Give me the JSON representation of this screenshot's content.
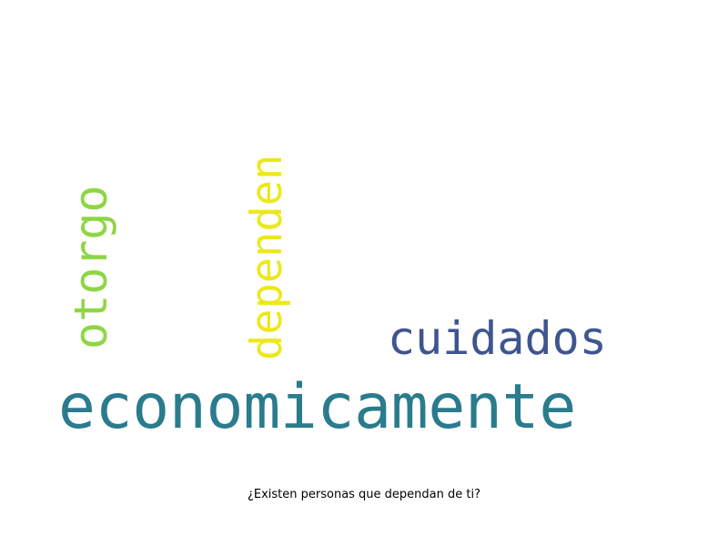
{
  "caption": "¿Existen personas que dependan de ti?",
  "words": {
    "economicamente": {
      "text": "economicamente",
      "color": "#2a7b8e"
    },
    "cuidados": {
      "text": "cuidados",
      "color": "#3e5590"
    },
    "dependen": {
      "text": "dependen",
      "color": "#ece81c"
    },
    "otorgo": {
      "text": "otorgo",
      "color": "#8ed644"
    }
  }
}
